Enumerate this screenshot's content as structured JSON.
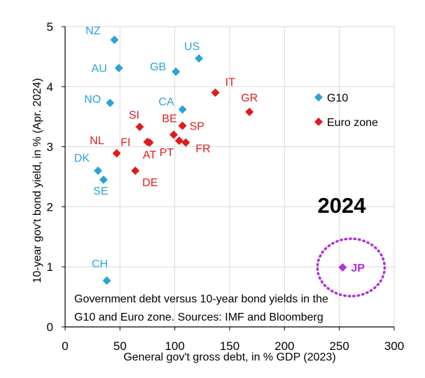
{
  "chart_data": {
    "type": "scatter",
    "title": "",
    "xlabel": "General gov't gross debt, in % GDP (2023)",
    "ylabel": "10-year gov't bond yield, in % (Apr. 2024)",
    "xlim": [
      0,
      300
    ],
    "ylim": [
      0,
      5
    ],
    "xticks": [
      0,
      50,
      100,
      150,
      200,
      250,
      300
    ],
    "yticks": [
      0,
      1,
      2,
      3,
      4,
      5
    ],
    "grid": true,
    "legend_position": "right",
    "colors": {
      "G10": "#2aa4d6",
      "Euro zone": "#e01b1b",
      "JP": "#b032d8"
    },
    "series": [
      {
        "name": "G10",
        "points": [
          {
            "label": "NZ",
            "x": 45,
            "y": 4.78
          },
          {
            "label": "US",
            "x": 122,
            "y": 4.47
          },
          {
            "label": "AU",
            "x": 49,
            "y": 4.31
          },
          {
            "label": "GB",
            "x": 101,
            "y": 4.25
          },
          {
            "label": "NO",
            "x": 41,
            "y": 3.73
          },
          {
            "label": "CA",
            "x": 107,
            "y": 3.62
          },
          {
            "label": "DK",
            "x": 30,
            "y": 2.6
          },
          {
            "label": "SE",
            "x": 35,
            "y": 2.45
          },
          {
            "label": "CH",
            "x": 38,
            "y": 0.77
          }
        ]
      },
      {
        "name": "Euro zone",
        "points": [
          {
            "label": "IT",
            "x": 137,
            "y": 3.9
          },
          {
            "label": "GR",
            "x": 168,
            "y": 3.58
          },
          {
            "label": "SI",
            "x": 68,
            "y": 3.33
          },
          {
            "label": "SP",
            "x": 107,
            "y": 3.35
          },
          {
            "label": "BE",
            "x": 99,
            "y": 3.2
          },
          {
            "label": "PT",
            "x": 104,
            "y": 3.1
          },
          {
            "label": "FR",
            "x": 110,
            "y": 3.07
          },
          {
            "label": "NL",
            "x": 47,
            "y": 2.89
          },
          {
            "label": "FI",
            "x": 75,
            "y": 3.08
          },
          {
            "label": "AT",
            "x": 77,
            "y": 3.07
          },
          {
            "label": "DE",
            "x": 64,
            "y": 2.6
          }
        ]
      }
    ],
    "highlight": {
      "label": "JP",
      "x": 253,
      "y": 0.99
    },
    "annotations": {
      "year": "2024",
      "note_line1": "Government debt versus 10-year bond yields in the",
      "note_line2": "G10 and Euro zone. Sources: IMF and Bloomberg"
    },
    "legend": [
      "G10",
      "Euro zone"
    ]
  }
}
